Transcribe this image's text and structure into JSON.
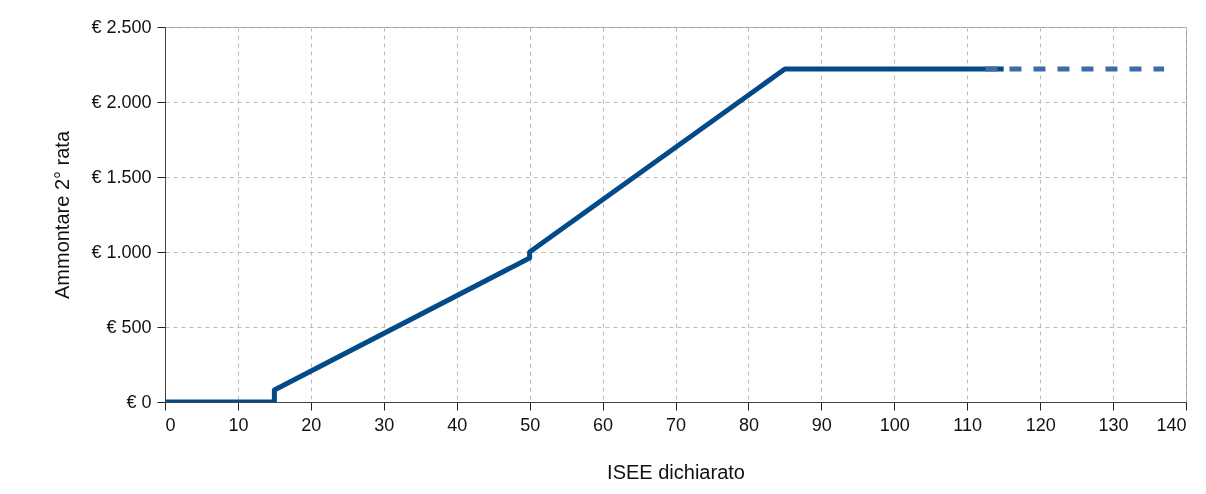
{
  "chart_data": {
    "type": "line",
    "xlabel": "ISEE dichiarato",
    "ylabel": "Ammontare 2° rata",
    "series": [
      {
        "color": "#034a8a",
        "line_style": "solid",
        "x": [
          0,
          15,
          15,
          50,
          50,
          85,
          115
        ],
        "values": [
          0,
          0,
          80,
          960,
          1000,
          2220,
          2220
        ]
      },
      {
        "color": "#3d6aa8",
        "line_style": "dashed",
        "x": [
          112.5,
          137
        ],
        "values": [
          2220,
          2220
        ]
      }
    ],
    "xlim": [
      0,
      140
    ],
    "xticks": [
      0,
      10,
      20,
      30,
      40,
      50,
      60,
      70,
      80,
      90,
      100,
      110,
      120,
      130,
      140
    ],
    "ylim": [
      0,
      2500
    ],
    "yticks": [
      {
        "value": 0,
        "label": "€ 0"
      },
      {
        "value": 500,
        "label": "€ 500"
      },
      {
        "value": 1000,
        "label": "€ 1.000"
      },
      {
        "value": 1500,
        "label": "€ 1.500"
      },
      {
        "value": 2000,
        "label": "€ 2.000"
      },
      {
        "value": 2500,
        "label": "€ 2.500"
      }
    ],
    "grid": true,
    "marker": "none"
  }
}
